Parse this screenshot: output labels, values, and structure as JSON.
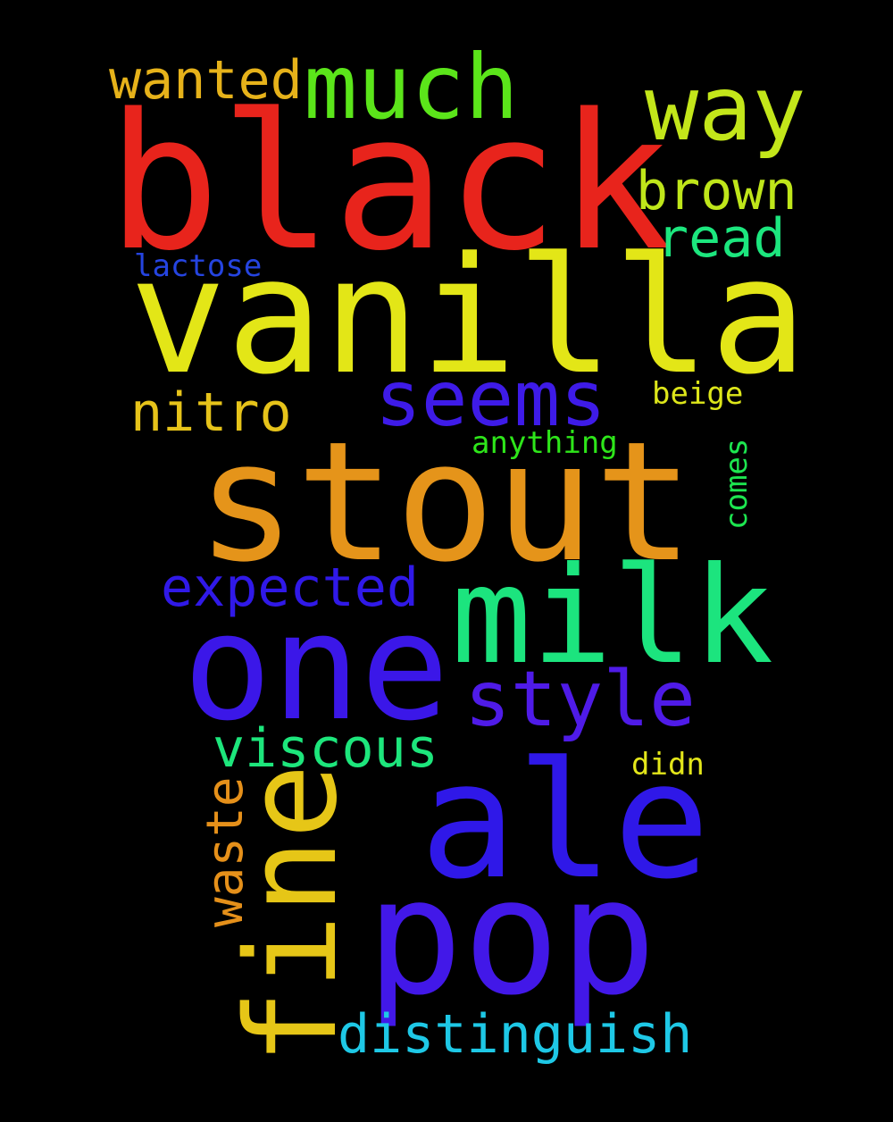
{
  "word_cloud": {
    "background": "#000000",
    "words": [
      {
        "id": "black",
        "text": "black",
        "color": "#e8241c",
        "orientation": "horizontal"
      },
      {
        "id": "vanilla",
        "text": "vanilla",
        "color": "#e3e617",
        "orientation": "horizontal"
      },
      {
        "id": "stout",
        "text": "stout",
        "color": "#e5941a",
        "orientation": "horizontal"
      },
      {
        "id": "one",
        "text": "one",
        "color": "#3b17e8",
        "orientation": "horizontal"
      },
      {
        "id": "ale",
        "text": "ale",
        "color": "#2f18e8",
        "orientation": "horizontal"
      },
      {
        "id": "pop",
        "text": "pop",
        "color": "#4218e8",
        "orientation": "horizontal"
      },
      {
        "id": "milk",
        "text": "milk",
        "color": "#1ce47e",
        "orientation": "horizontal"
      },
      {
        "id": "fine",
        "text": "fine",
        "color": "#e6c617",
        "orientation": "vertical"
      },
      {
        "id": "much",
        "text": "much",
        "color": "#5be51a",
        "orientation": "horizontal"
      },
      {
        "id": "way",
        "text": "way",
        "color": "#c3e61a",
        "orientation": "horizontal"
      },
      {
        "id": "seems",
        "text": "seems",
        "color": "#3e1be8",
        "orientation": "horizontal"
      },
      {
        "id": "style",
        "text": "style",
        "color": "#4f1be8",
        "orientation": "horizontal"
      },
      {
        "id": "wanted",
        "text": "wanted",
        "color": "#e6b21a",
        "orientation": "horizontal"
      },
      {
        "id": "brown",
        "text": "brown",
        "color": "#bfe61a",
        "orientation": "horizontal"
      },
      {
        "id": "read",
        "text": "read",
        "color": "#1ce67e",
        "orientation": "horizontal"
      },
      {
        "id": "nitro",
        "text": "nitro",
        "color": "#e6c31a",
        "orientation": "horizontal"
      },
      {
        "id": "expected",
        "text": "expected",
        "color": "#3019e8",
        "orientation": "horizontal"
      },
      {
        "id": "viscous",
        "text": "viscous",
        "color": "#1de67c",
        "orientation": "horizontal"
      },
      {
        "id": "distinguish",
        "text": "distinguish",
        "color": "#1ec8e6",
        "orientation": "horizontal"
      },
      {
        "id": "waste",
        "text": "waste",
        "color": "#e5901a",
        "orientation": "vertical"
      },
      {
        "id": "lactose",
        "text": "lactose",
        "color": "#2544e0",
        "orientation": "horizontal"
      },
      {
        "id": "beige",
        "text": "beige",
        "color": "#dde61a",
        "orientation": "horizontal"
      },
      {
        "id": "anything",
        "text": "anything",
        "color": "#2ee61a",
        "orientation": "horizontal"
      },
      {
        "id": "comes",
        "text": "comes",
        "color": "#1de650",
        "orientation": "vertical"
      },
      {
        "id": "didn",
        "text": "didn",
        "color": "#e3e61a",
        "orientation": "horizontal"
      }
    ]
  }
}
